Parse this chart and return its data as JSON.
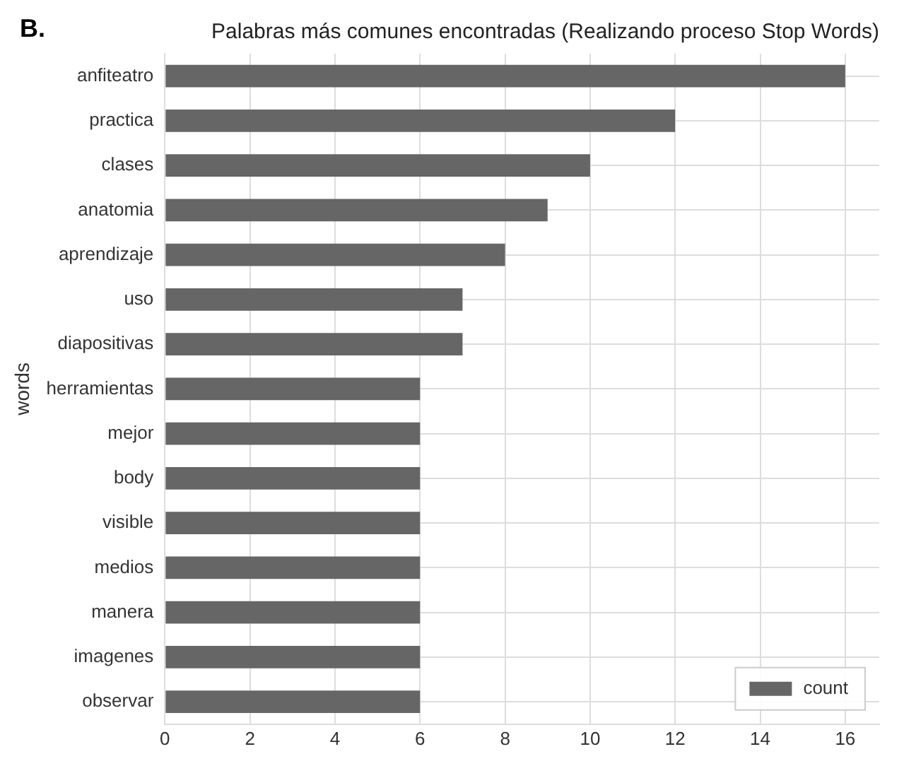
{
  "chart_data": {
    "type": "bar",
    "orientation": "horizontal",
    "title": "Palabras más comunes encontradas (Realizando proceso Stop Words)",
    "ylabel": "words",
    "annotations": [
      "B."
    ],
    "categories": [
      "anfiteatro",
      "practica",
      "clases",
      "anatomia",
      "aprendizaje",
      "uso",
      "diapositivas",
      "herramientas",
      "mejor",
      "body",
      "visible",
      "medios",
      "manera",
      "imagenes",
      "observar"
    ],
    "series": [
      {
        "name": "count",
        "color": "#666666",
        "values": [
          16,
          12,
          10,
          9,
          8,
          7,
          7,
          6,
          6,
          6,
          6,
          6,
          6,
          6,
          6
        ]
      }
    ],
    "xlim": [
      0,
      16.8
    ],
    "xticks": [
      0,
      2,
      4,
      6,
      8,
      10,
      12,
      14,
      16
    ],
    "grid": true,
    "legend": "bottom right"
  }
}
